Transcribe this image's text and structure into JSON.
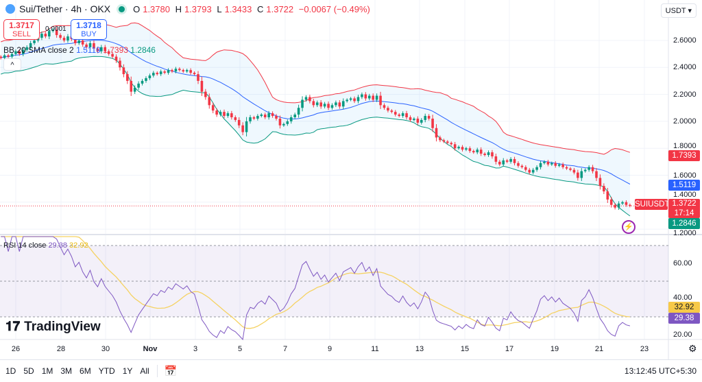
{
  "header": {
    "symbol": "Sui/Tether · 4h · OKX",
    "open_label": "O",
    "open": "1.3780",
    "high_label": "H",
    "high": "1.3793",
    "low_label": "L",
    "low": "1.3433",
    "close_label": "C",
    "close": "1.3722",
    "change": "−0.0067 (−0.49%)",
    "market_status_color": "#089981"
  },
  "trade": {
    "sell_price": "1.3717",
    "sell_label": "SELL",
    "spread": "0.0001",
    "buy_price": "1.3718",
    "buy_label": "BUY"
  },
  "currency": "USDT",
  "bb_legend": {
    "label": "BB 20 SMA close 2",
    "basis": "1.5119",
    "upper": "1.7393",
    "lower": "1.2846"
  },
  "rsi_legend": {
    "label": "RSI 14 close",
    "rsi": "29.38",
    "ma": "32.92"
  },
  "price_labels": {
    "upper": "1.7393",
    "basis": "1.5119",
    "symbol": "SUIUSDT",
    "last": "1.3722",
    "countdown": "17:14",
    "lower": "1.2846"
  },
  "brand": "TradingView",
  "ranges": [
    "1D",
    "5D",
    "1M",
    "3M",
    "6M",
    "YTD",
    "1Y",
    "All"
  ],
  "clock": "13:12:45 UTC+5:30",
  "colors": {
    "up": "#089981",
    "down": "#f23645",
    "bb_upper": "#f23645",
    "bb_basis": "#2962ff",
    "bb_lower": "#089981",
    "rsi": "#7e57c2",
    "rsi_ma": "#f5d262"
  },
  "chart_data": [
    {
      "type": "candlestick",
      "title": "Sui/Tether · 4h · OKX",
      "x_ticks": [
        "26",
        "28",
        "30",
        "Nov",
        "3",
        "5",
        "7",
        "9",
        "11",
        "13",
        "15",
        "17",
        "19",
        "21",
        "23"
      ],
      "y_ticks": [
        "1.2000",
        "1.4000",
        "1.6000",
        "1.8000",
        "2.0000",
        "2.2000",
        "2.4000",
        "2.6000"
      ],
      "ylim": [
        1.2,
        2.7
      ],
      "interval": "4h",
      "last_close": 1.3722,
      "closes": [
        2.47,
        2.49,
        2.48,
        2.5,
        2.52,
        2.5,
        2.53,
        2.55,
        2.58,
        2.6,
        2.62,
        2.65,
        2.63,
        2.67,
        2.68,
        2.64,
        2.62,
        2.6,
        2.63,
        2.61,
        2.58,
        2.6,
        2.57,
        2.55,
        2.58,
        2.54,
        2.52,
        2.55,
        2.52,
        2.5,
        2.48,
        2.45,
        2.4,
        2.35,
        2.3,
        2.22,
        2.25,
        2.28,
        2.3,
        2.32,
        2.34,
        2.36,
        2.35,
        2.37,
        2.36,
        2.38,
        2.37,
        2.39,
        2.38,
        2.37,
        2.38,
        2.36,
        2.35,
        2.3,
        2.22,
        2.18,
        2.12,
        2.08,
        2.05,
        2.07,
        2.04,
        2.06,
        2.03,
        2.01,
        1.97,
        1.92,
        2.0,
        2.03,
        2.02,
        2.04,
        2.05,
        2.03,
        2.06,
        2.04,
        2.02,
        1.97,
        1.98,
        2.0,
        2.03,
        2.05,
        2.1,
        2.16,
        2.18,
        2.15,
        2.12,
        2.14,
        2.11,
        2.13,
        2.1,
        2.12,
        2.14,
        2.11,
        2.15,
        2.16,
        2.17,
        2.15,
        2.18,
        2.2,
        2.17,
        2.19,
        2.16,
        2.19,
        2.12,
        2.1,
        2.08,
        2.07,
        2.05,
        2.04,
        2.06,
        2.03,
        2.01,
        2.02,
        1.99,
        2.01,
        2.04,
        2.02,
        1.95,
        1.88,
        1.86,
        1.85,
        1.84,
        1.83,
        1.8,
        1.81,
        1.79,
        1.8,
        1.78,
        1.77,
        1.79,
        1.76,
        1.75,
        1.77,
        1.74,
        1.7,
        1.68,
        1.71,
        1.7,
        1.72,
        1.69,
        1.67,
        1.66,
        1.64,
        1.62,
        1.64,
        1.66,
        1.69,
        1.7,
        1.68,
        1.69,
        1.67,
        1.68,
        1.66,
        1.65,
        1.64,
        1.62,
        1.58,
        1.63,
        1.64,
        1.66,
        1.63,
        1.58,
        1.52,
        1.48,
        1.42,
        1.38,
        1.36,
        1.39,
        1.4,
        1.38,
        1.3722
      ],
      "overlay": {
        "name": "BB 20 SMA close 2",
        "last": {
          "basis": 1.5119,
          "upper": 1.7393,
          "lower": 1.2846
        }
      }
    },
    {
      "type": "line",
      "title": "RSI 14 close",
      "y_ticks": [
        "20.00",
        "40.00",
        "60.00"
      ],
      "ylim": [
        15,
        75
      ],
      "bands": [
        30,
        50,
        70
      ],
      "last": {
        "rsi": 29.38,
        "ma": 32.92
      }
    }
  ]
}
